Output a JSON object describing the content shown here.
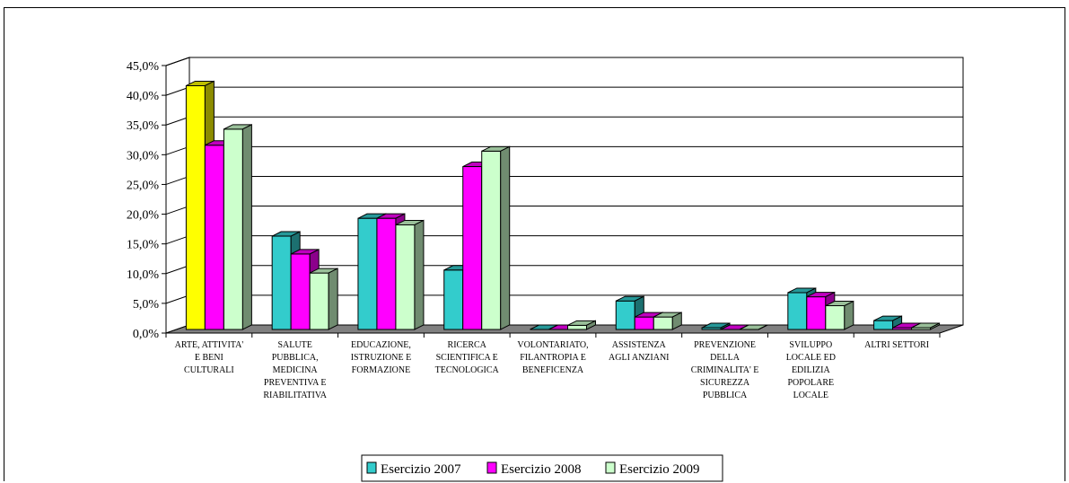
{
  "chart_data": {
    "type": "bar",
    "title": "",
    "xlabel": "",
    "ylabel": "",
    "ylim": [
      0,
      45
    ],
    "y_ticks": [
      "0,0%",
      "5,0%",
      "10,0%",
      "15,0%",
      "20,0%",
      "25,0%",
      "30,0%",
      "35,0%",
      "40,0%",
      "45,0%"
    ],
    "grid": true,
    "legend_position": "bottom",
    "categories": [
      [
        "ARTE, ATTIVITA'",
        "E BENI",
        "CULTURALI"
      ],
      [
        "SALUTE",
        "PUBBLICA,",
        "MEDICINA",
        "PREVENTIVA E",
        "RIABILITATIVA"
      ],
      [
        "EDUCAZIONE,",
        "ISTRUZIONE E",
        "FORMAZIONE"
      ],
      [
        "RICERCA",
        "SCIENTIFICA E",
        "TECNOLOGICA"
      ],
      [
        "VOLONTARIATO,",
        "FILANTROPIA E",
        "BENEFICENZA"
      ],
      [
        "ASSISTENZA",
        "AGLI ANZIANI"
      ],
      [
        "PREVENZIONE",
        "DELLA",
        "CRIMINALITA' E",
        "SICUREZZA",
        "PUBBLICA"
      ],
      [
        "SVILUPPO",
        "LOCALE ED",
        "EDILIZIA",
        "POPOLARE",
        "LOCALE"
      ],
      [
        "ALTRI SETTORI"
      ]
    ],
    "series": [
      {
        "name": "Esercizio 2007",
        "color": "#33CCCC",
        "values": [
          41.0,
          15.7,
          18.7,
          10.0,
          0.0,
          4.8,
          0.3,
          6.2,
          1.5
        ]
      },
      {
        "name": "Esercizio 2008",
        "color": "#FF00FF",
        "values": [
          31.0,
          12.7,
          18.7,
          27.4,
          0.0,
          2.1,
          0.0,
          5.5,
          0.3
        ]
      },
      {
        "name": "Esercizio 2009",
        "color": "#CCFFCC",
        "values": [
          33.7,
          9.5,
          17.6,
          30.0,
          0.7,
          2.1,
          0.0,
          4.0,
          0.3
        ]
      }
    ],
    "highlight": {
      "series": 0,
      "category": 0,
      "color": "#FFFF00"
    }
  }
}
